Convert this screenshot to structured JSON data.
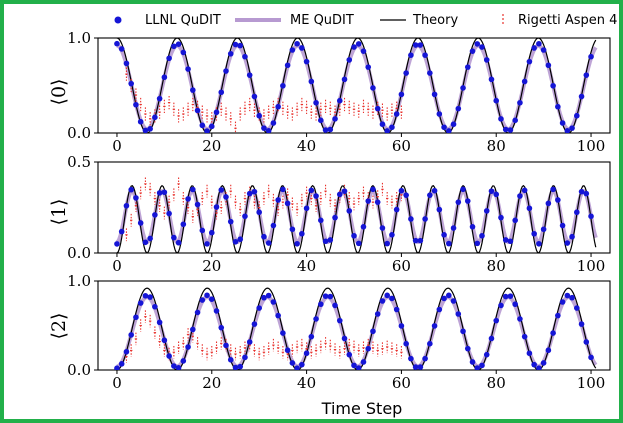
{
  "colors": {
    "border": "#22b04a",
    "llnl": "#1515d6",
    "me": "#b79ad1",
    "theory": "#000000",
    "rigetti": "#e8322d"
  },
  "chart_data": {
    "type": "scatter",
    "xlabel": "Time Step",
    "xlim": [
      -4,
      104
    ],
    "xticks": [
      0,
      20,
      40,
      60,
      80,
      100
    ],
    "legend": {
      "placement": "top",
      "entries": [
        {
          "key": "llnl",
          "label": "LLNL QuDIT",
          "marker": "dot"
        },
        {
          "key": "me",
          "label": "ME QuDIT",
          "marker": "thick-line"
        },
        {
          "key": "theory",
          "label": "Theory",
          "marker": "line"
        },
        {
          "key": "rigetti",
          "label": "Rigetti Aspen 4",
          "marker": "errorbar"
        }
      ]
    },
    "theory_period": 12.7,
    "panels": [
      {
        "ylabel": "⟨0⟩",
        "ylim": [
          0,
          1
        ],
        "yticks": [
          "0.0",
          "1.0"
        ],
        "yticks_values": [
          0,
          1
        ],
        "xticks_labels": [
          "0",
          "20",
          "40",
          "60",
          "80",
          "100"
        ],
        "series": {
          "theory": {
            "model": "ket0",
            "amp": 1.0
          },
          "llnl": {
            "model": "ket0",
            "amp": 0.92,
            "offset": 0.02,
            "n": 101
          },
          "me": {
            "model": "ket0",
            "amp": 0.88,
            "offset": 0.04
          },
          "rigetti": [
            [
              2,
              0.62
            ],
            [
              3,
              0.5
            ],
            [
              4,
              0.4
            ],
            [
              5,
              0.3
            ],
            [
              6,
              0.2
            ],
            [
              7,
              0.15
            ],
            [
              8,
              0.18
            ],
            [
              9,
              0.22
            ],
            [
              10,
              0.28
            ],
            [
              11,
              0.32
            ],
            [
              12,
              0.25
            ],
            [
              13,
              0.18
            ],
            [
              14,
              0.2
            ],
            [
              15,
              0.25
            ],
            [
              16,
              0.3
            ],
            [
              17,
              0.27
            ],
            [
              18,
              0.22
            ],
            [
              19,
              0.18
            ],
            [
              20,
              0.15
            ],
            [
              21,
              0.2
            ],
            [
              22,
              0.25
            ],
            [
              23,
              0.2
            ],
            [
              24,
              0.15
            ],
            [
              25,
              0.05
            ],
            [
              26,
              0.2
            ],
            [
              27,
              0.26
            ],
            [
              28,
              0.3
            ],
            [
              29,
              0.24
            ],
            [
              30,
              0.2
            ],
            [
              31,
              0.18
            ],
            [
              32,
              0.22
            ],
            [
              33,
              0.27
            ],
            [
              34,
              0.3
            ],
            [
              35,
              0.26
            ],
            [
              36,
              0.22
            ],
            [
              37,
              0.2
            ],
            [
              38,
              0.25
            ],
            [
              39,
              0.3
            ],
            [
              40,
              0.27
            ],
            [
              41,
              0.22
            ],
            [
              42,
              0.2
            ],
            [
              43,
              0.25
            ],
            [
              44,
              0.28
            ],
            [
              45,
              0.26
            ],
            [
              46,
              0.22
            ],
            [
              47,
              0.25
            ],
            [
              48,
              0.3
            ],
            [
              49,
              0.27
            ],
            [
              50,
              0.25
            ],
            [
              51,
              0.23
            ],
            [
              52,
              0.28
            ],
            [
              53,
              0.25
            ],
            [
              54,
              0.22
            ],
            [
              55,
              0.26
            ],
            [
              56,
              0.24
            ],
            [
              57,
              0.2
            ],
            [
              58,
              0.24
            ],
            [
              59,
              0.26
            ],
            [
              60,
              0.22
            ]
          ]
        }
      },
      {
        "ylabel": "⟨1⟩",
        "ylim": [
          0,
          0.5
        ],
        "yticks": [
          "0.0",
          "0.5"
        ],
        "yticks_values": [
          0,
          0.5
        ],
        "xticks_labels": [
          "0",
          "20",
          "40",
          "60",
          "80",
          "100"
        ],
        "series": {
          "theory": {
            "model": "ket1",
            "amp": 0.37
          },
          "llnl": {
            "model": "ket1",
            "amp": 0.3,
            "offset": 0.05,
            "n": 101
          },
          "me": {
            "model": "ket1",
            "amp": 0.28,
            "offset": 0.06
          },
          "rigetti": [
            [
              2,
              0.1
            ],
            [
              3,
              0.18
            ],
            [
              4,
              0.26
            ],
            [
              5,
              0.33
            ],
            [
              6,
              0.38
            ],
            [
              7,
              0.35
            ],
            [
              8,
              0.3
            ],
            [
              9,
              0.26
            ],
            [
              10,
              0.22
            ],
            [
              11,
              0.28
            ],
            [
              12,
              0.32
            ],
            [
              13,
              0.38
            ],
            [
              14,
              0.3
            ],
            [
              15,
              0.25
            ],
            [
              16,
              0.2
            ],
            [
              17,
              0.24
            ],
            [
              18,
              0.3
            ],
            [
              19,
              0.34
            ],
            [
              20,
              0.28
            ],
            [
              21,
              0.22
            ],
            [
              22,
              0.25
            ],
            [
              23,
              0.3
            ],
            [
              24,
              0.34
            ],
            [
              25,
              0.28
            ],
            [
              26,
              0.24
            ],
            [
              27,
              0.3
            ],
            [
              28,
              0.33
            ],
            [
              29,
              0.28
            ],
            [
              30,
              0.25
            ],
            [
              31,
              0.3
            ],
            [
              32,
              0.34
            ],
            [
              33,
              0.29
            ],
            [
              34,
              0.24
            ],
            [
              35,
              0.28
            ],
            [
              36,
              0.32
            ],
            [
              37,
              0.27
            ],
            [
              38,
              0.24
            ],
            [
              39,
              0.29
            ],
            [
              40,
              0.33
            ],
            [
              41,
              0.3
            ],
            [
              42,
              0.26
            ],
            [
              43,
              0.3
            ],
            [
              44,
              0.34
            ],
            [
              45,
              0.29
            ],
            [
              46,
              0.26
            ],
            [
              47,
              0.31
            ],
            [
              48,
              0.34
            ],
            [
              49,
              0.3
            ],
            [
              50,
              0.27
            ],
            [
              51,
              0.3
            ],
            [
              52,
              0.33
            ],
            [
              53,
              0.3
            ],
            [
              54,
              0.28
            ],
            [
              55,
              0.31
            ],
            [
              56,
              0.35
            ],
            [
              57,
              0.3
            ],
            [
              58,
              0.28
            ],
            [
              59,
              0.3
            ],
            [
              60,
              0.32
            ]
          ]
        }
      },
      {
        "ylabel": "⟨2⟩",
        "ylim": [
          0,
          1
        ],
        "yticks": [
          "0.0",
          "1.0"
        ],
        "yticks_values": [
          0,
          1
        ],
        "xticks_labels": [
          "0",
          "20",
          "40",
          "60",
          "80",
          "100"
        ],
        "series": {
          "theory": {
            "model": "ket2",
            "amp": 0.92
          },
          "llnl": {
            "model": "ket2",
            "amp": 0.82,
            "offset": 0.02,
            "n": 101
          },
          "me": {
            "model": "ket2",
            "amp": 0.78,
            "offset": 0.04
          },
          "rigetti": [
            [
              2,
              0.15
            ],
            [
              3,
              0.22
            ],
            [
              4,
              0.35
            ],
            [
              5,
              0.5
            ],
            [
              6,
              0.6
            ],
            [
              7,
              0.55
            ],
            [
              8,
              0.42
            ],
            [
              9,
              0.32
            ],
            [
              10,
              0.22
            ],
            [
              11,
              0.18
            ],
            [
              12,
              0.2
            ],
            [
              13,
              0.25
            ],
            [
              14,
              0.3
            ],
            [
              15,
              0.4
            ],
            [
              16,
              0.38
            ],
            [
              17,
              0.3
            ],
            [
              18,
              0.22
            ],
            [
              19,
              0.18
            ],
            [
              20,
              0.2
            ],
            [
              21,
              0.25
            ],
            [
              22,
              0.3
            ],
            [
              23,
              0.28
            ],
            [
              24,
              0.22
            ],
            [
              25,
              0.18
            ],
            [
              26,
              0.2
            ],
            [
              27,
              0.25
            ],
            [
              28,
              0.28
            ],
            [
              29,
              0.22
            ],
            [
              30,
              0.18
            ],
            [
              31,
              0.2
            ],
            [
              32,
              0.24
            ],
            [
              33,
              0.28
            ],
            [
              34,
              0.25
            ],
            [
              35,
              0.2
            ],
            [
              36,
              0.18
            ],
            [
              37,
              0.22
            ],
            [
              38,
              0.26
            ],
            [
              39,
              0.28
            ],
            [
              40,
              0.24
            ],
            [
              41,
              0.2
            ],
            [
              42,
              0.22
            ],
            [
              43,
              0.26
            ],
            [
              44,
              0.3
            ],
            [
              45,
              0.27
            ],
            [
              46,
              0.23
            ],
            [
              47,
              0.2
            ],
            [
              48,
              0.24
            ],
            [
              49,
              0.28
            ],
            [
              50,
              0.26
            ],
            [
              51,
              0.22
            ],
            [
              52,
              0.25
            ],
            [
              53,
              0.28
            ],
            [
              54,
              0.25
            ],
            [
              55,
              0.22
            ],
            [
              56,
              0.24
            ],
            [
              57,
              0.26
            ],
            [
              58,
              0.24
            ],
            [
              59,
              0.22
            ],
            [
              60,
              0.2
            ]
          ]
        }
      }
    ]
  }
}
